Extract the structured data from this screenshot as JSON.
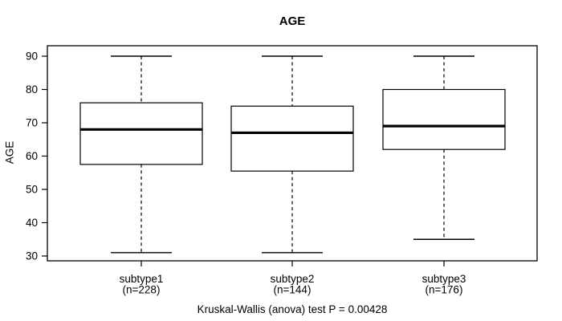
{
  "chart_data": {
    "type": "boxplot",
    "title": "AGE",
    "ylabel": "AGE",
    "xlabel": "",
    "ylim": [
      28.5,
      93
    ],
    "y_ticks": [
      30,
      40,
      50,
      60,
      70,
      80,
      90
    ],
    "grid": false,
    "orientation": "vertical",
    "groups": [
      {
        "label": "subtype1",
        "n": 228,
        "n_label": "(n=228)",
        "stats": {
          "whisker_low": 31,
          "q1": 57.5,
          "median": 68,
          "q3": 76,
          "whisker_high": 90
        }
      },
      {
        "label": "subtype2",
        "n": 144,
        "n_label": "(n=144)",
        "stats": {
          "whisker_low": 31,
          "q1": 55.5,
          "median": 67,
          "q3": 75,
          "whisker_high": 90
        }
      },
      {
        "label": "subtype3",
        "n": 176,
        "n_label": "(n=176)",
        "stats": {
          "whisker_low": 35,
          "q1": 62,
          "median": 69,
          "q3": 80,
          "whisker_high": 90
        }
      }
    ],
    "annotation": "Kruskal-Wallis (anova) test P = 0.00428",
    "colors": {
      "line": "#000000",
      "box_fill": "#ffffff",
      "background": "#ffffff"
    }
  }
}
